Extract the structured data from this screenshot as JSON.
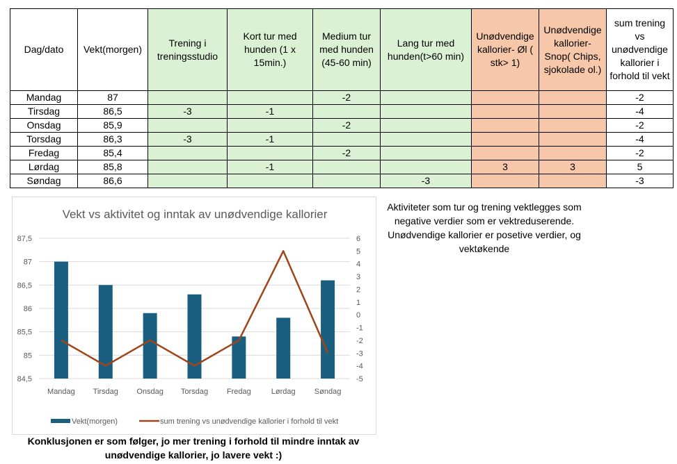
{
  "table": {
    "headers": [
      "Dag/dato",
      "Vekt(morgen)",
      "Trening i treningsstudio",
      "Kort tur med hunden (1 x 15min.)",
      "Medium tur med hunden (45-60 min)",
      "Lang tur med hunden(t>60 min)",
      "Unødvendige kallorier- Øl ( stk> 1)",
      "Unødvendige kallorier- Snop( Chips, sjokolade ol.)",
      "sum trening vs unødvendige kallorier i forhold til vekt"
    ],
    "rows": [
      [
        "Mandag",
        "87",
        "",
        "",
        "-2",
        "",
        "",
        "",
        "-2"
      ],
      [
        "Tirsdag",
        "86,5",
        "-3",
        "-1",
        "",
        "",
        "",
        "",
        "-4"
      ],
      [
        "Onsdag",
        "85,9",
        "",
        "",
        "-2",
        "",
        "",
        "",
        "-2"
      ],
      [
        "Torsdag",
        "86,3",
        "-3",
        "-1",
        "",
        "",
        "",
        "",
        "-4"
      ],
      [
        "Fredag",
        "85,4",
        "",
        "",
        "-2",
        "",
        "",
        "",
        "-2"
      ],
      [
        "Lørdag",
        "85,8",
        "",
        "-1",
        "",
        "",
        "3",
        "3",
        "5"
      ],
      [
        "Søndag",
        "86,6",
        "",
        "",
        "",
        "-3",
        "",
        "",
        "-3"
      ]
    ]
  },
  "note": "Aktiviteter som tur og trening vektlegges som negative verdier som er vektreduserende. Unødvendige kallorier er posetive verdier, og vektøkende",
  "conclusion": "Konklusjonen er som følger, jo mer trening i forhold til mindre inntak av unødvendige kallorier, jo lavere vekt :)",
  "chart_data": {
    "type": "bar+line",
    "title": "Vekt vs aktivitet og inntak av unødvendige kallorier",
    "categories": [
      "Mandag",
      "Tirsdag",
      "Onsdag",
      "Torsdag",
      "Fredag",
      "Lørdag",
      "Søndag"
    ],
    "series": [
      {
        "name": "Vekt(morgen)",
        "type": "bar",
        "axis": "left",
        "color": "#1a5e80",
        "values": [
          87,
          86.5,
          85.9,
          86.3,
          85.4,
          85.8,
          86.6
        ]
      },
      {
        "name": "sum trening vs unødvendige kallorier i forhold til vekt",
        "type": "line",
        "axis": "right",
        "color": "#a0441a",
        "values": [
          -2,
          -4,
          -2,
          -4,
          -2,
          5,
          -3
        ]
      }
    ],
    "ylim_left": [
      84.5,
      87.5
    ],
    "yticks_left": [
      "84,5",
      "85",
      "85,5",
      "86",
      "86,5",
      "87",
      "87,5"
    ],
    "ylim_right": [
      -5,
      6
    ],
    "yticks_right": [
      "-5",
      "-4",
      "-3",
      "-2",
      "-1",
      "0",
      "1",
      "2",
      "3",
      "4",
      "5",
      "6"
    ],
    "grid": true,
    "legend": "bottom"
  }
}
